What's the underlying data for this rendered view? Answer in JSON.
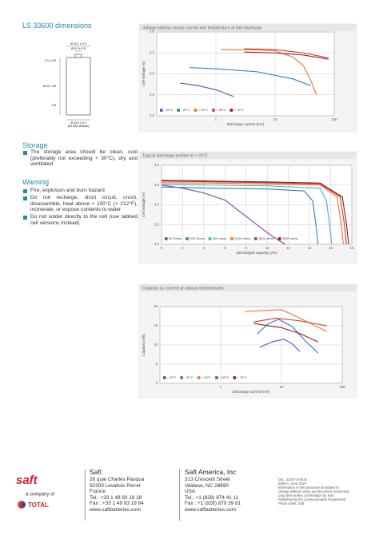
{
  "dimensions": {
    "title": "LS 33600 dimensions",
    "labels": [
      "Ø 33.1 ± 0.3",
      "Ø 9.3 ± 0.5",
      "3.1 ± 0.5",
      "61.5 ± 0.6",
      "0.5",
      "Ø 33.3 ± 0.3",
      "(for SAL version)"
    ]
  },
  "storage": {
    "heading": "Storage",
    "text": "The storage area should be clean, cool (preferably not exceeding + 30°C), dry and ventilated"
  },
  "warning": {
    "heading": "Warning",
    "items": [
      "Fire, explosion and burn hazard",
      "Do not recharge, short circuit, crush, disassemble, heat above + 100°C (+ 212°F), incinerate, or expose contents to water",
      "Do not solder directly to the cell (use tabbed cell versions instead)"
    ]
  },
  "chart_data": [
    {
      "type": "line",
      "title": "Voltage plateau versus current and temperature at mid-discharge",
      "x_label": "Discharge current (mA)",
      "y_label": "Cell Voltage (V)",
      "xlog": true,
      "xlim": [
        0.1,
        100
      ],
      "ylim": [
        2,
        4
      ],
      "xticks": [
        1,
        10,
        100
      ],
      "yticks": [
        {
          "value": 2,
          "label": "2.0"
        },
        2.5,
        {
          "value": 3,
          "label": "3.0"
        },
        3.5,
        {
          "value": 4,
          "label": "4.0"
        }
      ],
      "grid": true,
      "legend": "lower left",
      "series": [
        {
          "name": "- 40°C",
          "color": "#7b3fa8",
          "x": [
            0.25,
            0.5,
            1,
            2
          ],
          "values": [
            2.78,
            2.72,
            2.62,
            2.46
          ]
        },
        {
          "name": "- 20°C",
          "color": "#2e7fc2",
          "x": [
            0.36,
            1,
            5,
            20,
            40
          ],
          "values": [
            3.15,
            3.12,
            3.05,
            2.88,
            2.72
          ]
        },
        {
          "name": "+ 20°C",
          "color": "#e8752a",
          "x": [
            1.2,
            5,
            10,
            20,
            30,
            40,
            50
          ],
          "values": [
            3.58,
            3.57,
            3.55,
            3.4,
            3.2,
            2.85,
            2.5
          ]
        },
        {
          "name": "+ 55°C",
          "color": "#d0392b",
          "x": [
            3,
            10,
            30,
            80
          ],
          "values": [
            3.6,
            3.58,
            3.5,
            3.38
          ]
        },
        {
          "name": "+ 70°C",
          "color": "#8b1a2b",
          "x": [
            3,
            10,
            30,
            80
          ],
          "values": [
            3.52,
            3.5,
            3.45,
            3.35
          ]
        }
      ]
    },
    {
      "type": "line",
      "title": "Typical discharge profiles at + 20°C",
      "x_label": "Discharged capacity (Ah)",
      "y_label": "Cell Voltage (V)",
      "xlog": false,
      "xlim": [
        0,
        18
      ],
      "ylim": [
        2,
        4
      ],
      "xticks": [
        0,
        2,
        4,
        6,
        8,
        10,
        12,
        14,
        16,
        18
      ],
      "yticks": [
        {
          "value": 2,
          "label": "2.0"
        },
        2.5,
        {
          "value": 3,
          "label": "3.0"
        },
        3.5,
        {
          "value": 4,
          "label": "4.0"
        }
      ],
      "grid": true,
      "legend": "lower left",
      "series": [
        {
          "name": "50 Ohms",
          "color": "#7b3fa8",
          "x": [
            0,
            2,
            4,
            6,
            7.3,
            9,
            10.5,
            11.7
          ],
          "values": [
            3.5,
            3.42,
            3.3,
            3.12,
            2.85,
            2.5,
            2.2,
            2.0
          ]
        },
        {
          "name": "200 Ohms",
          "color": "#2e7fc2",
          "x": [
            0,
            5,
            10,
            13.5,
            14.3,
            14.6,
            14.8
          ],
          "values": [
            3.45,
            3.42,
            3.4,
            3.35,
            3.1,
            2.5,
            2.0
          ]
        },
        {
          "name": "600 ohms",
          "color": "#3bb3d6",
          "x": [
            0,
            5,
            10,
            15,
            15.6,
            15.9,
            16.1
          ],
          "values": [
            3.52,
            3.5,
            3.48,
            3.42,
            3.1,
            2.5,
            2.0
          ]
        },
        {
          "name": "1000 ohms",
          "color": "#e8752a",
          "x": [
            0,
            5,
            10,
            15,
            16.6,
            17,
            17.2
          ],
          "values": [
            3.56,
            3.55,
            3.53,
            3.5,
            3.2,
            2.5,
            2.0
          ]
        },
        {
          "name": "1800 ohms",
          "color": "#d0392b",
          "x": [
            0,
            5,
            10,
            15,
            16.9,
            17.3,
            17.5
          ],
          "values": [
            3.6,
            3.58,
            3.56,
            3.53,
            3.2,
            2.5,
            2.0
          ]
        },
        {
          "name": "3300 ohms",
          "color": "#8b1a2b",
          "x": [
            0,
            5,
            10,
            15,
            17.1,
            17.5,
            17.7
          ],
          "values": [
            3.62,
            3.6,
            3.58,
            3.55,
            3.2,
            2.5,
            2.0
          ]
        }
      ]
    },
    {
      "type": "line",
      "title": "Capacity vs. current at various temperatures",
      "x_label": "Discharge current (mA)",
      "y_label": "Capacity (Ah)",
      "xlog": true,
      "xlim": [
        0.1,
        100
      ],
      "ylim": [
        0,
        20
      ],
      "xticks": [
        1,
        10,
        100
      ],
      "yticks": [
        0,
        5,
        10,
        15,
        20
      ],
      "grid": true,
      "legend": "lower left",
      "series": [
        {
          "name": "- 40°C",
          "color": "#7b3fa8",
          "x": [
            4.4,
            7,
            11,
            15,
            20
          ],
          "values": [
            9.4,
            10.8,
            11.5,
            10.3,
            8.3
          ]
        },
        {
          "name": "- 20°C",
          "color": "#2e7fc2",
          "x": [
            4,
            6,
            9,
            15,
            25,
            40
          ],
          "values": [
            12.9,
            15.5,
            16.7,
            14.8,
            11,
            7.9
          ]
        },
        {
          "name": "+ 20°C",
          "color": "#e8752a",
          "x": [
            2.5,
            5,
            10,
            20,
            56
          ],
          "values": [
            18.7,
            19,
            19.2,
            17,
            13.5
          ]
        },
        {
          "name": "+ 55°C",
          "color": "#d0392b",
          "x": [
            3.5,
            8,
            20,
            56
          ],
          "values": [
            16,
            17,
            16.3,
            15
          ]
        },
        {
          "name": "+ 70°C",
          "color": "#8b1a2b",
          "x": [
            3.5,
            10,
            20,
            40
          ],
          "values": [
            15.6,
            14.5,
            13,
            10.8
          ]
        }
      ]
    }
  ],
  "footer": {
    "logo": "saft",
    "tagline": "a company of",
    "parent": "TOTAL",
    "offices": [
      {
        "name": "Saft",
        "lines": [
          "26 quai Charles Pasqua",
          "92300 Levallois Perret",
          "France",
          "Tel.:  +33 1 49 93 19 18",
          "Fax :  +33 1 49 93 19 64",
          "www.saftbatteries.com"
        ]
      },
      {
        "name": "Saft America, Inc",
        "lines": [
          "313 Crescent Street",
          "Valdese, NC 28690",
          "USA",
          "Tel.:  +1 (828) 874 41 11",
          "Fax :  +1 (828) 879 39 81",
          "www.saftbatteries.com"
        ]
      }
    ],
    "notes": [
      "Doc. 31007-2-0619",
      "Edition: June 2019",
      "Information in this document is subject to change without notice and becomes contractual only after written confirmation by Saft.",
      "Published by the Communication Department",
      "Photo credit: Saft"
    ]
  }
}
